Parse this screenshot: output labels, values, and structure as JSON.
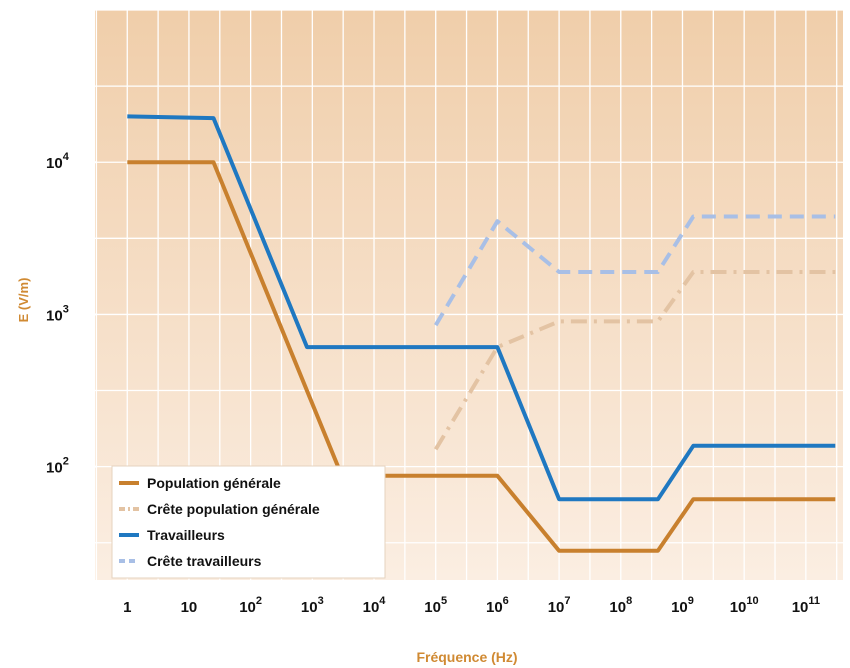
{
  "chart_data": {
    "type": "line",
    "title": "",
    "xlabel": "Fréquence (Hz)",
    "ylabel": "E (V/m)",
    "x_scale": "log",
    "y_scale": "log",
    "xlim": [
      0.3,
      400000000000
    ],
    "ylim": [
      18,
      100000
    ],
    "grid": true,
    "legend_position": "bottom-left",
    "x_ticks": [
      {
        "value": 1,
        "base": "1",
        "exp": ""
      },
      {
        "value": 10,
        "base": "10",
        "exp": ""
      },
      {
        "value": 100,
        "base": "10",
        "exp": "2"
      },
      {
        "value": 1000,
        "base": "10",
        "exp": "3"
      },
      {
        "value": 10000,
        "base": "10",
        "exp": "4"
      },
      {
        "value": 100000,
        "base": "10",
        "exp": "5"
      },
      {
        "value": 1000000,
        "base": "10",
        "exp": "6"
      },
      {
        "value": 10000000,
        "base": "10",
        "exp": "7"
      },
      {
        "value": 100000000,
        "base": "10",
        "exp": "8"
      },
      {
        "value": 1000000000,
        "base": "10",
        "exp": "9"
      },
      {
        "value": 10000000000,
        "base": "10",
        "exp": "10"
      },
      {
        "value": 100000000000,
        "base": "10",
        "exp": "11"
      }
    ],
    "y_ticks": [
      {
        "value": 100,
        "base": "10",
        "exp": "2"
      },
      {
        "value": 1000,
        "base": "10",
        "exp": "3"
      },
      {
        "value": 10000,
        "base": "10",
        "exp": "4"
      }
    ],
    "series": [
      {
        "name": "Population générale",
        "color": "#c8802e",
        "style": "solid",
        "points": [
          [
            1,
            10000
          ],
          [
            25,
            10000
          ],
          [
            3000,
            87
          ],
          [
            1000000,
            87
          ],
          [
            10000000,
            28
          ],
          [
            400000000,
            28
          ],
          [
            1500000000,
            61
          ],
          [
            300000000000,
            61
          ]
        ]
      },
      {
        "name": "Crête population générale",
        "color": "#e3c3a3",
        "style": "dashdot",
        "points": [
          [
            100000,
            130
          ],
          [
            1000000,
            610
          ],
          [
            10000000,
            900
          ],
          [
            400000000,
            900
          ],
          [
            1500000000,
            1900
          ],
          [
            300000000000,
            1900
          ]
        ]
      },
      {
        "name": "Travailleurs",
        "color": "#1f78c1",
        "style": "solid",
        "points": [
          [
            1,
            20000
          ],
          [
            25,
            19500
          ],
          [
            820,
            610
          ],
          [
            1000000,
            610
          ],
          [
            10000000,
            61
          ],
          [
            400000000,
            61
          ],
          [
            1500000000,
            137
          ],
          [
            300000000000,
            137
          ]
        ]
      },
      {
        "name": "Crête travailleurs",
        "color": "#a8bfe6",
        "style": "dashed",
        "points": [
          [
            100000,
            850
          ],
          [
            1000000,
            4100
          ],
          [
            10000000,
            1900
          ],
          [
            400000000,
            1900
          ],
          [
            1500000000,
            4400
          ],
          [
            300000000000,
            4400
          ]
        ]
      }
    ]
  },
  "colors": {
    "plot_top": "#f0ceaa",
    "plot_bottom": "#fbeee2",
    "grid": "#ffffff",
    "axis_title": "#d08a33",
    "legend_bg": "#ffffff"
  }
}
